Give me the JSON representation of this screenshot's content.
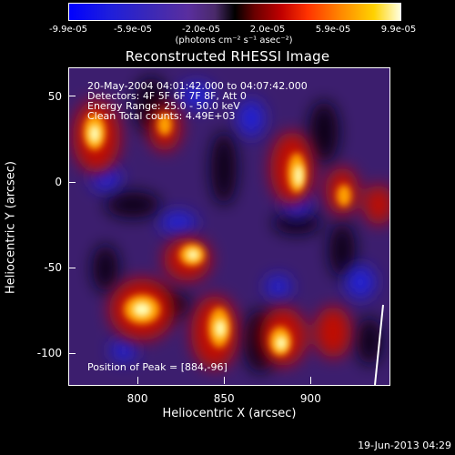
{
  "colorbar": {
    "ticks": [
      "-9.9e-05",
      "-5.9e-05",
      "-2.0e-05",
      "2.0e-05",
      "5.9e-05",
      "9.9e-05"
    ],
    "unit_label": "(photons cm⁻² s⁻¹ asec⁻²)"
  },
  "title": "Reconstructed RHESSI Image",
  "info": {
    "time_range": "20-May-2004 04:01:42.000 to 04:07:42.000",
    "detectors": "Detectors: 4F 5F 6F 7F 8F, Att 0",
    "energy": "Energy Range: 25.0 - 50.0 keV",
    "clean": "Clean     Total counts: 4.49E+03",
    "peak": "Position of Peak = [884,-96]"
  },
  "axes": {
    "xlabel": "Heliocentric X (arcsec)",
    "ylabel": "Heliocentric Y (arcsec)",
    "xticks": [
      "800",
      "850",
      "900"
    ],
    "xtick_values": [
      800,
      850,
      900
    ],
    "yticks": [
      "50",
      "0",
      "-50",
      "-100"
    ],
    "ytick_values": [
      50,
      0,
      -50,
      -100
    ],
    "xlim": [
      760,
      945
    ],
    "ylim": [
      -118,
      67
    ]
  },
  "timestamp": "19-Jun-2013 04:29",
  "colors": {
    "background": "#000000",
    "negative": "#2a2ad0",
    "neutral": "#3c1e6e",
    "positive_low": "#c00000",
    "positive_mid": "#ff8800",
    "positive_high": "#ffffc0"
  }
}
